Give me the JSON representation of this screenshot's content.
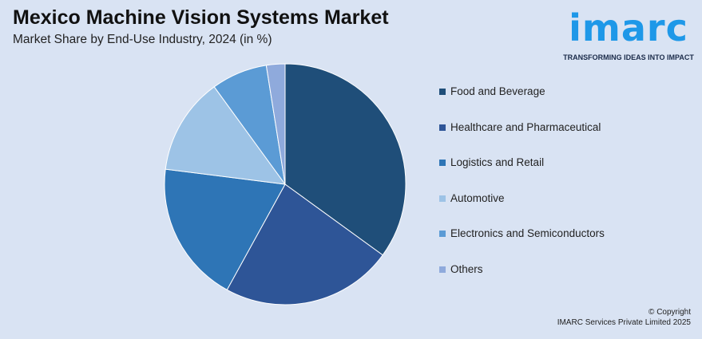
{
  "chart_data": {
    "type": "pie",
    "title": "Mexico Machine Vision Systems Market",
    "subtitle": "Market Share by End-Use Industry, 2024 (in %)",
    "categories": [
      "Food and Beverage",
      "Healthcare and Pharmaceutical",
      "Logistics and Retail",
      "Automotive",
      "Electronics and Semiconductors",
      "Others"
    ],
    "values": [
      35,
      23,
      19,
      13,
      7.5,
      2.5
    ],
    "colors": [
      "#1f4e79",
      "#2e5597",
      "#2e75b6",
      "#9dc3e6",
      "#5b9bd5",
      "#8faadc"
    ],
    "legend_position": "right"
  },
  "logo": {
    "word": "imarc",
    "tagline": "TRANSFORMING IDEAS INTO IMPACT"
  },
  "footer": {
    "copyright": "© Copyright",
    "company": "IMARC Services Private Limited 2025"
  }
}
